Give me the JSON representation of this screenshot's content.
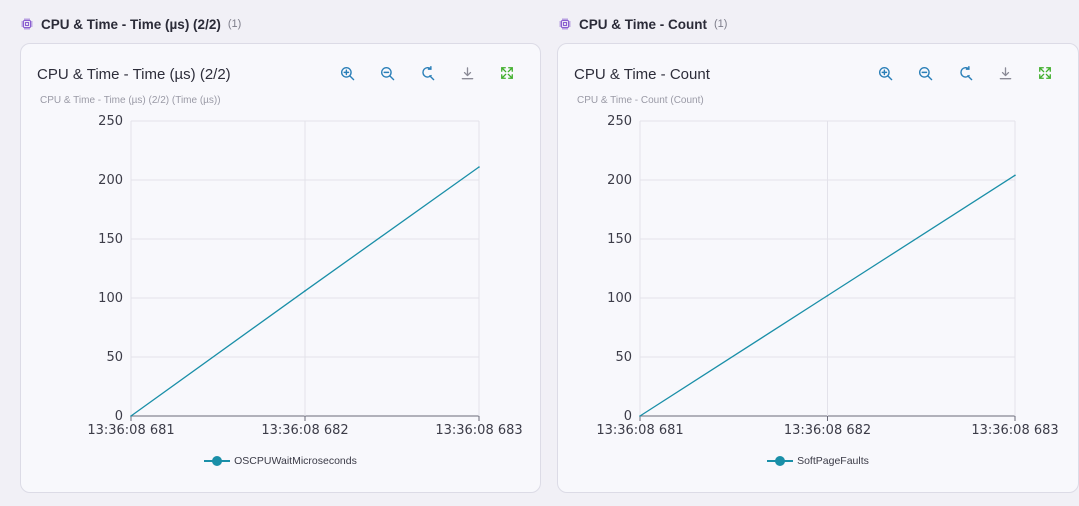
{
  "colors": {
    "accent": "#1a8fa8",
    "icon_blue": "#2a7fb8",
    "fullscreen_green": "#3fae2a",
    "cpu_icon": "#8a5fd0"
  },
  "sections": [
    {
      "header": {
        "title": "CPU & Time - Time (µs) (2/2)",
        "count": "(1)",
        "icon": "cpu-chip-icon"
      },
      "card": {
        "title": "CPU & Time - Time (µs) (2/2)",
        "toolbar": [
          "zoom-in-icon",
          "zoom-out-icon",
          "reset-zoom-icon",
          "download-icon",
          "fullscreen-icon"
        ]
      },
      "chart_data": {
        "type": "line",
        "title": "CPU & Time - Time (µs) (2/2)",
        "subtitle": "CPU & Time - Time (µs) (2/2) (Time (µs))",
        "xlabel": "",
        "ylabel": "",
        "categories": [
          "13:36:08 681",
          "13:36:08 682",
          "13:36:08 683"
        ],
        "x": [
          0,
          1,
          2
        ],
        "ylim": [
          0,
          250
        ],
        "yticks": [
          0,
          50,
          100,
          150,
          200,
          250
        ],
        "grid": true,
        "legend": "bottom",
        "series": [
          {
            "name": "OSCPUWaitMicroseconds",
            "values": [
              0,
              106,
              211
            ]
          }
        ]
      }
    },
    {
      "header": {
        "title": "CPU & Time - Count",
        "count": "(1)",
        "icon": "cpu-chip-icon"
      },
      "card": {
        "title": "CPU & Time - Count",
        "toolbar": [
          "zoom-in-icon",
          "zoom-out-icon",
          "reset-zoom-icon",
          "download-icon",
          "fullscreen-icon"
        ]
      },
      "chart_data": {
        "type": "line",
        "title": "CPU & Time - Count",
        "subtitle": "CPU & Time - Count (Count)",
        "xlabel": "",
        "ylabel": "",
        "categories": [
          "13:36:08 681",
          "13:36:08 682",
          "13:36:08 683"
        ],
        "x": [
          0,
          1,
          2
        ],
        "ylim": [
          0,
          250
        ],
        "yticks": [
          0,
          50,
          100,
          150,
          200,
          250
        ],
        "grid": true,
        "legend": "bottom",
        "series": [
          {
            "name": "SoftPageFaults",
            "values": [
              0,
              102,
              204
            ]
          }
        ]
      }
    }
  ]
}
